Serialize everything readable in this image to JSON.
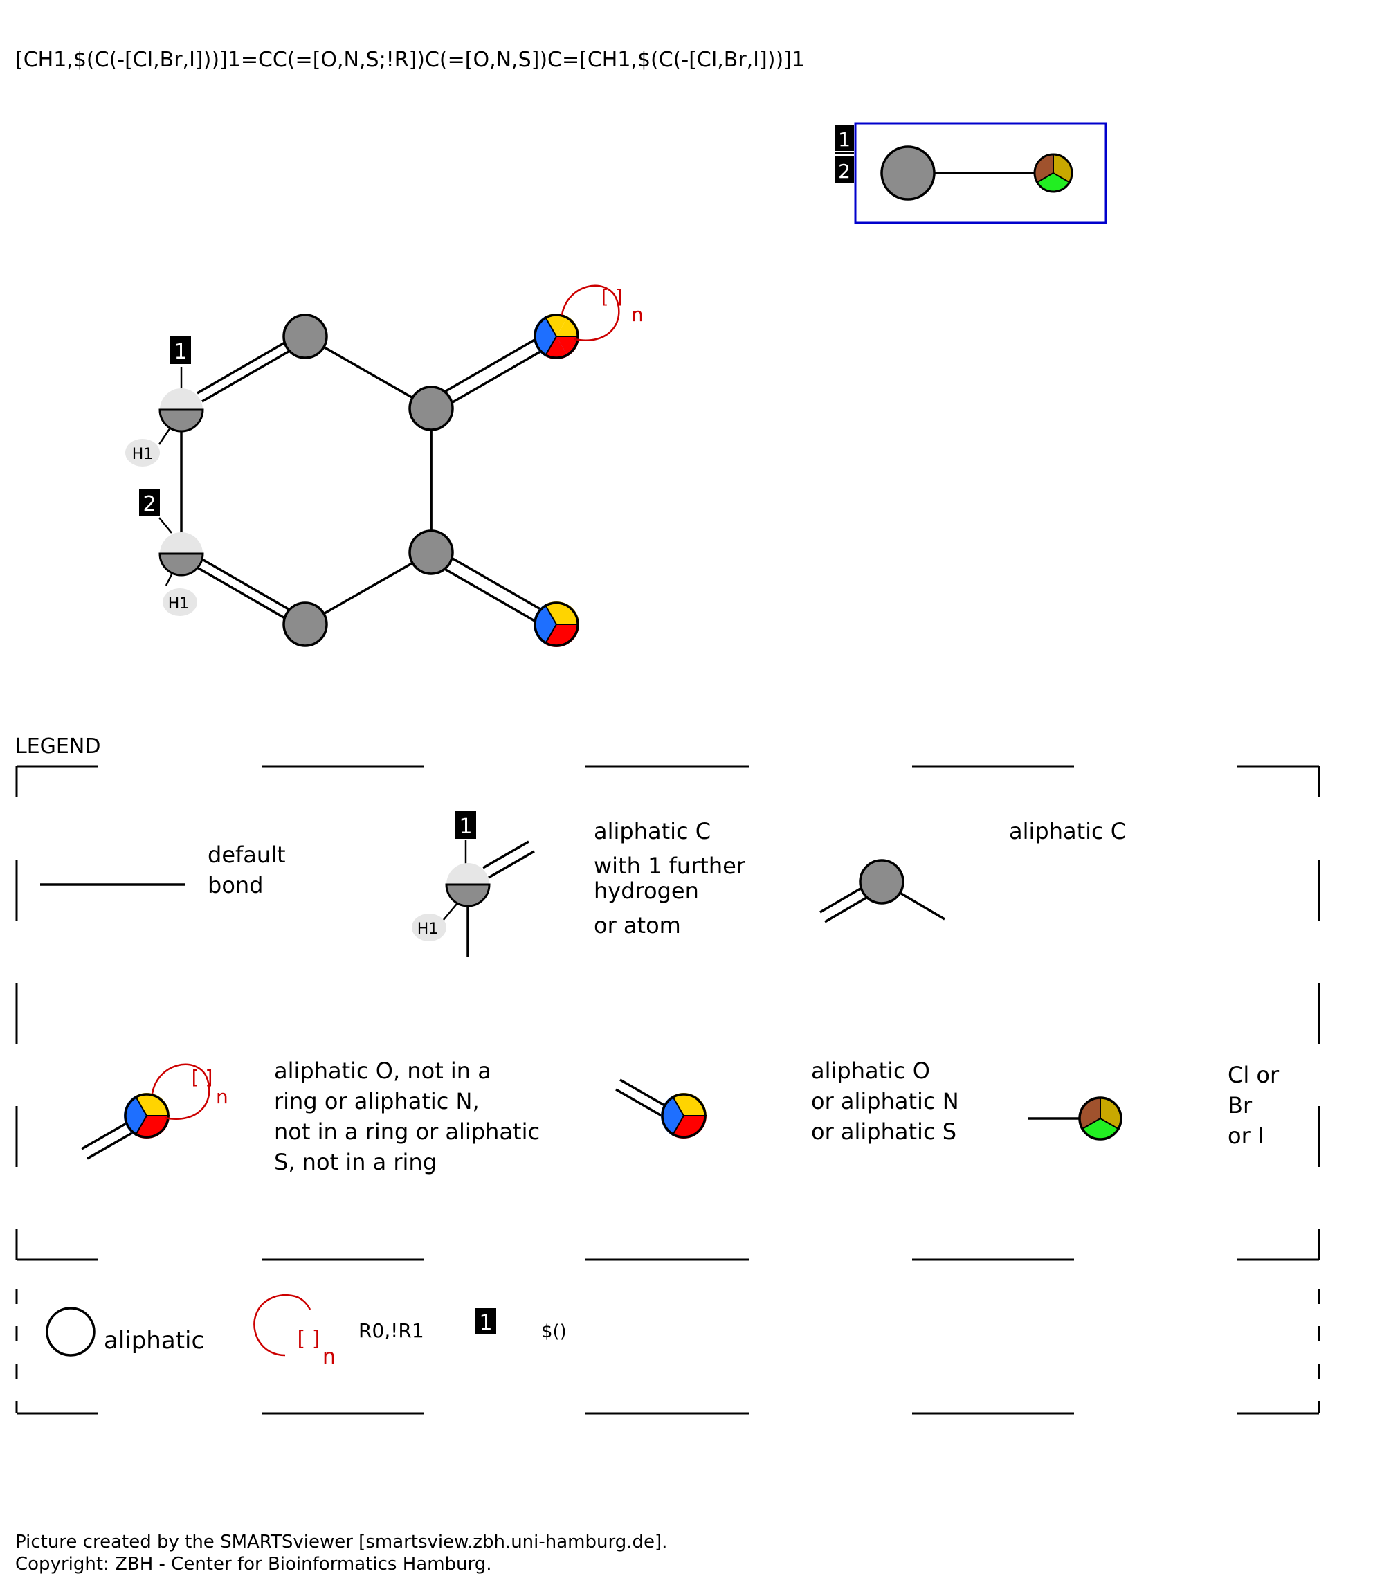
{
  "smarts": "[CH1,$(C(-[Cl,Br,I]))]1=CC(=[O,N,S;!R])C(=[O,N,S])C=[CH1,$(C(-[Cl,Br,I]))]1",
  "labels": {
    "num1": "1",
    "num2": "2",
    "h1": "H1",
    "ring_bracket": "[ ]",
    "ring_n": "n"
  },
  "legend": {
    "title": "LEGEND",
    "default_bond": [
      "default",
      "bond"
    ],
    "aliphatic_ch": [
      "aliphatic C",
      "with 1 further",
      "hydrogen",
      "or atom"
    ],
    "aliphatic_c": "aliphatic C",
    "ons_notring": [
      "aliphatic O, not in a",
      "ring or aliphatic N,",
      "not in a ring or aliphatic",
      "S, not in a ring"
    ],
    "ons": [
      "aliphatic O",
      "or aliphatic N",
      "or aliphatic S"
    ],
    "halogen": [
      "Cl or",
      "Br",
      "or I"
    ],
    "aliphatic": "aliphatic",
    "ring_label": "R0,!R1",
    "recursive": "$()"
  },
  "footer": {
    "line1": "Picture created by the SMARTSviewer [smartsview.zbh.uni-hamburg.de].",
    "line2": "Copyright: ZBH - Center for Bioinformatics Hamburg."
  },
  "colors": {
    "carbon": "#8c8c8c",
    "hydrogen_top": "#e6e6e6",
    "oxygen": "#ff0000",
    "nitrogen": "#1e6fff",
    "sulfur": "#ffd400",
    "chlorine": "#22ee22",
    "bromine": "#a0522d",
    "iodine": "#c8a800",
    "ring_red": "#cc0000",
    "frame_blue": "#0000cc"
  }
}
